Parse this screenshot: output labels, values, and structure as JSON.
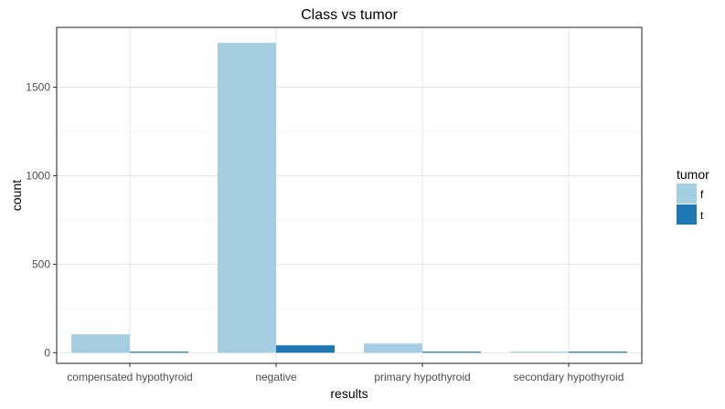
{
  "chart_data": {
    "type": "bar",
    "title": "Class vs tumor",
    "xlabel": "results",
    "ylabel": "count",
    "categories": [
      "compensated hypothyroid",
      "negative",
      "primary hypothyroid",
      "secondary hypothyroid"
    ],
    "series": [
      {
        "name": "f",
        "values": [
          104,
          1751,
          52,
          2
        ],
        "color": "#a6cee3"
      },
      {
        "name": "t",
        "values": [
          5,
          42,
          4,
          0
        ],
        "color": "#1f78b4"
      }
    ],
    "ylim": [
      -60,
      1838
    ],
    "yticks": [
      0,
      500,
      1000,
      1500
    ],
    "legend": {
      "title": "tumor",
      "position": "right"
    },
    "grid": true
  }
}
